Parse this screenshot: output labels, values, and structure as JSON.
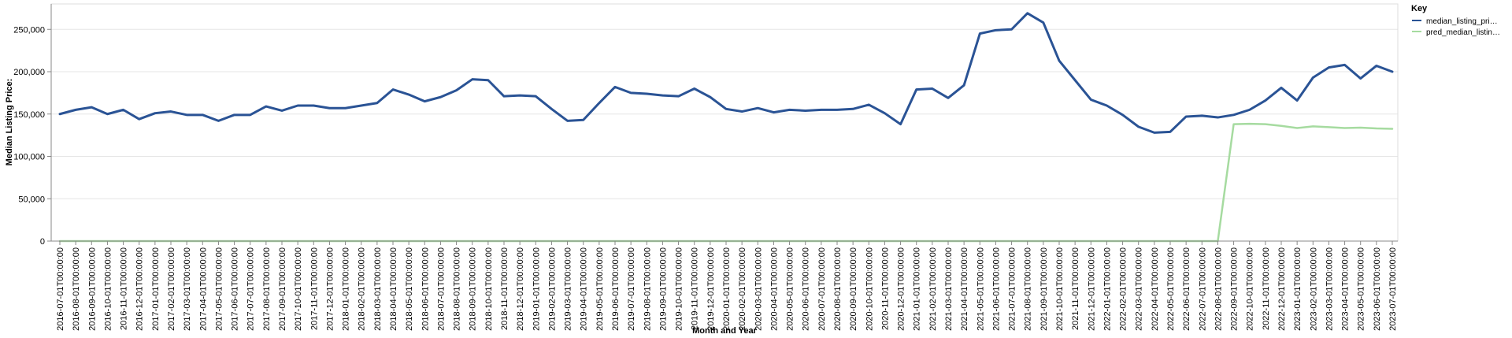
{
  "chart_data": {
    "type": "line",
    "xlabel": "Month and Year",
    "ylabel": "Median Listing Price:",
    "ylim": [
      0,
      280000
    ],
    "yticks": [
      0,
      50000,
      100000,
      150000,
      200000,
      250000
    ],
    "ytick_labels": [
      "0",
      "50,000",
      "100,000",
      "150,000",
      "200,000",
      "250,000"
    ],
    "grid": "horizontal",
    "legend": {
      "title": "Key",
      "placement": "top-right"
    },
    "colors": {
      "median": "#2a5395",
      "pred": "#a6dba0"
    },
    "x": [
      "2016-07-01T00:00:00",
      "2016-08-01T00:00:00",
      "2016-09-01T00:00:00",
      "2016-10-01T00:00:00",
      "2016-11-01T00:00:00",
      "2016-12-01T00:00:00",
      "2017-01-01T00:00:00",
      "2017-02-01T00:00:00",
      "2017-03-01T00:00:00",
      "2017-04-01T00:00:00",
      "2017-05-01T00:00:00",
      "2017-06-01T00:00:00",
      "2017-07-01T00:00:00",
      "2017-08-01T00:00:00",
      "2017-09-01T00:00:00",
      "2017-10-01T00:00:00",
      "2017-11-01T00:00:00",
      "2017-12-01T00:00:00",
      "2018-01-01T00:00:00",
      "2018-02-01T00:00:00",
      "2018-03-01T00:00:00",
      "2018-04-01T00:00:00",
      "2018-05-01T00:00:00",
      "2018-06-01T00:00:00",
      "2018-07-01T00:00:00",
      "2018-08-01T00:00:00",
      "2018-09-01T00:00:00",
      "2018-10-01T00:00:00",
      "2018-11-01T00:00:00",
      "2018-12-01T00:00:00",
      "2019-01-01T00:00:00",
      "2019-02-01T00:00:00",
      "2019-03-01T00:00:00",
      "2019-04-01T00:00:00",
      "2019-05-01T00:00:00",
      "2019-06-01T00:00:00",
      "2019-07-01T00:00:00",
      "2019-08-01T00:00:00",
      "2019-09-01T00:00:00",
      "2019-10-01T00:00:00",
      "2019-11-01T00:00:00",
      "2019-12-01T00:00:00",
      "2020-01-01T00:00:00",
      "2020-02-01T00:00:00",
      "2020-03-01T00:00:00",
      "2020-04-01T00:00:00",
      "2020-05-01T00:00:00",
      "2020-06-01T00:00:00",
      "2020-07-01T00:00:00",
      "2020-08-01T00:00:00",
      "2020-09-01T00:00:00",
      "2020-10-01T00:00:00",
      "2020-11-01T00:00:00",
      "2020-12-01T00:00:00",
      "2021-01-01T00:00:00",
      "2021-02-01T00:00:00",
      "2021-03-01T00:00:00",
      "2021-04-01T00:00:00",
      "2021-05-01T00:00:00",
      "2021-06-01T00:00:00",
      "2021-07-01T00:00:00",
      "2021-08-01T00:00:00",
      "2021-09-01T00:00:00",
      "2021-10-01T00:00:00",
      "2021-11-01T00:00:00",
      "2021-12-01T00:00:00",
      "2022-01-01T00:00:00",
      "2022-02-01T00:00:00",
      "2022-03-01T00:00:00",
      "2022-04-01T00:00:00",
      "2022-05-01T00:00:00",
      "2022-06-01T00:00:00",
      "2022-07-01T00:00:00",
      "2022-08-01T00:00:00",
      "2022-09-01T00:00:00",
      "2022-10-01T00:00:00",
      "2022-11-01T00:00:00",
      "2022-12-01T00:00:00",
      "2023-01-01T00:00:00",
      "2023-02-01T00:00:00",
      "2023-03-01T00:00:00",
      "2023-04-01T00:00:00",
      "2023-05-01T00:00:00",
      "2023-06-01T00:00:00",
      "2023-07-01T00:00:00"
    ],
    "series": [
      {
        "name": "median_listing_pri…",
        "color_key": "median",
        "values": [
          150000,
          155000,
          158000,
          150000,
          155000,
          144000,
          151000,
          153000,
          149000,
          149000,
          142000,
          149000,
          149000,
          159000,
          154000,
          160000,
          160000,
          157000,
          157000,
          160000,
          163000,
          179000,
          173000,
          165000,
          170000,
          178000,
          191000,
          190000,
          171000,
          172000,
          171000,
          156000,
          142000,
          143000,
          163000,
          182000,
          175000,
          174000,
          172000,
          171000,
          180000,
          170000,
          156000,
          153000,
          157000,
          152000,
          155000,
          154000,
          155000,
          155000,
          156000,
          161000,
          151000,
          138000,
          179000,
          180000,
          169000,
          184000,
          245000,
          249000,
          250000,
          269000,
          258000,
          213000,
          190000,
          167000,
          160000,
          149000,
          135000,
          128000,
          129000,
          147000,
          148000,
          146000,
          149000,
          155000,
          166000,
          181000,
          166000,
          193000,
          205000,
          208000,
          192000,
          207000,
          200000
        ]
      },
      {
        "name": "pred_median_listin…",
        "color_key": "pred",
        "values": [
          0,
          0,
          0,
          0,
          0,
          0,
          0,
          0,
          0,
          0,
          0,
          0,
          0,
          0,
          0,
          0,
          0,
          0,
          0,
          0,
          0,
          0,
          0,
          0,
          0,
          0,
          0,
          0,
          0,
          0,
          0,
          0,
          0,
          0,
          0,
          0,
          0,
          0,
          0,
          0,
          0,
          0,
          0,
          0,
          0,
          0,
          0,
          0,
          0,
          0,
          0,
          0,
          0,
          0,
          0,
          0,
          0,
          0,
          0,
          0,
          0,
          0,
          0,
          0,
          0,
          0,
          0,
          0,
          0,
          0,
          0,
          0,
          0,
          0,
          138000,
          138500,
          138000,
          136000,
          133500,
          135500,
          134500,
          133500,
          134000,
          133000,
          132500
        ]
      }
    ]
  }
}
